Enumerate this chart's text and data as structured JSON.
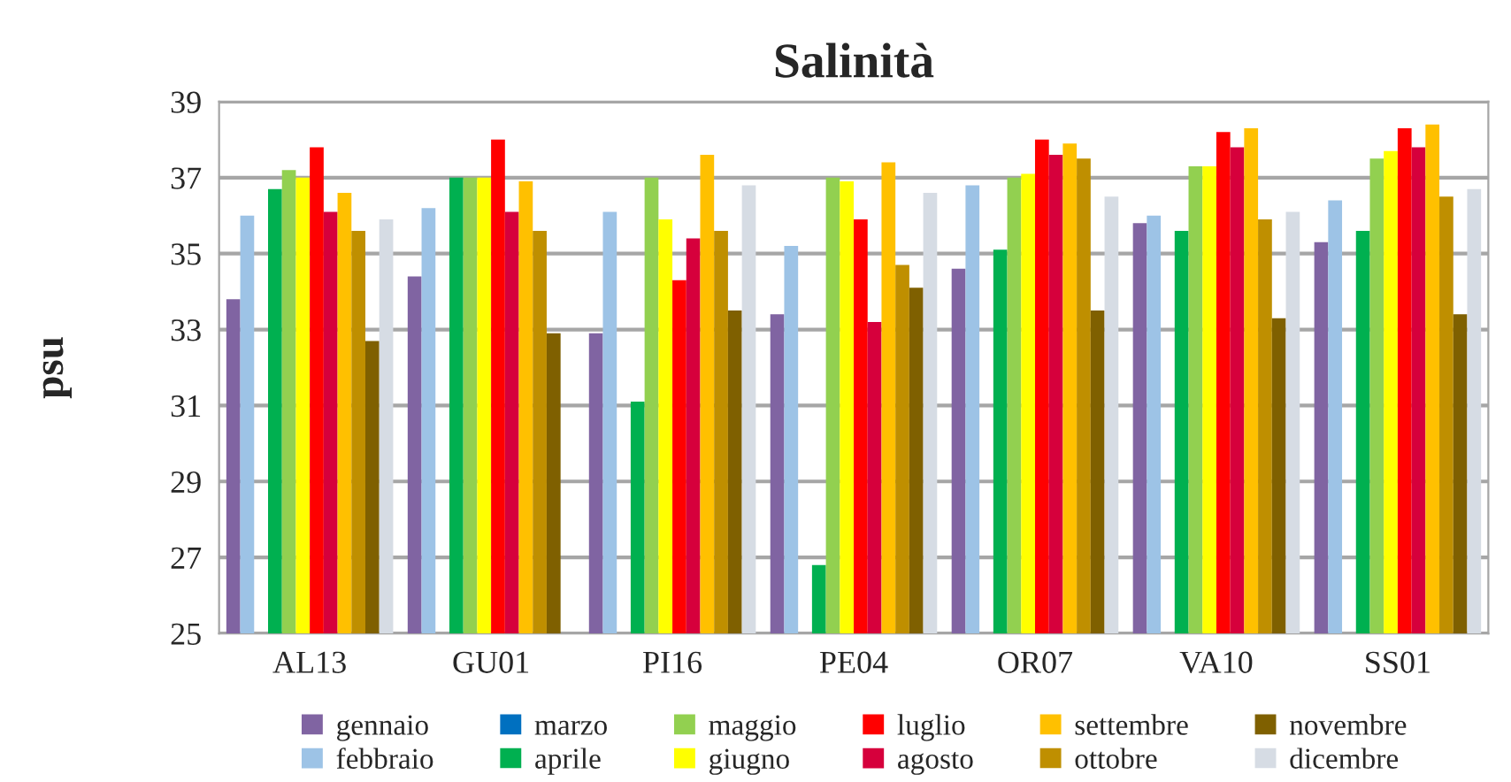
{
  "chart_data": {
    "type": "bar",
    "title": "Salinità",
    "ylabel": "psu",
    "categories": [
      "AL13",
      "GU01",
      "PI16",
      "PE04",
      "OR07",
      "VA10",
      "SS01"
    ],
    "ylim": [
      25,
      39
    ],
    "yticks": [
      25,
      27,
      29,
      31,
      33,
      35,
      37,
      39
    ],
    "grid": "y",
    "legend": "bottom",
    "series": [
      {
        "name": "gennaio",
        "color": "#8064a2",
        "values": [
          33.8,
          34.4,
          32.9,
          33.4,
          34.6,
          35.8,
          35.3
        ]
      },
      {
        "name": "febbraio",
        "color": "#9dc3e6",
        "values": [
          36.0,
          36.2,
          36.1,
          35.2,
          36.8,
          36.0,
          36.4
        ]
      },
      {
        "name": "marzo",
        "color": "#0070c0",
        "values": [
          null,
          null,
          null,
          null,
          null,
          null,
          null
        ]
      },
      {
        "name": "aprile",
        "color": "#00b050",
        "values": [
          36.7,
          37.0,
          31.1,
          26.8,
          35.1,
          35.6,
          35.6
        ]
      },
      {
        "name": "maggio",
        "color": "#92d050",
        "values": [
          37.2,
          37.0,
          37.0,
          37.0,
          37.0,
          37.3,
          37.5
        ]
      },
      {
        "name": "giugno",
        "color": "#ffff00",
        "values": [
          37.0,
          37.0,
          35.9,
          36.9,
          37.1,
          37.3,
          37.7
        ]
      },
      {
        "name": "luglio",
        "color": "#ff0000",
        "values": [
          37.8,
          38.0,
          34.3,
          35.9,
          38.0,
          38.2,
          38.3
        ]
      },
      {
        "name": "agosto",
        "color": "#d6003c",
        "values": [
          36.1,
          36.1,
          35.4,
          33.2,
          37.6,
          37.8,
          37.8
        ]
      },
      {
        "name": "settembre",
        "color": "#ffc000",
        "values": [
          36.6,
          36.9,
          37.6,
          37.4,
          37.9,
          38.3,
          38.4
        ]
      },
      {
        "name": "ottobre",
        "color": "#bf8f00",
        "values": [
          35.6,
          35.6,
          35.6,
          34.7,
          37.5,
          35.9,
          36.5
        ]
      },
      {
        "name": "novembre",
        "color": "#7f6000",
        "values": [
          32.7,
          32.9,
          33.5,
          34.1,
          33.5,
          33.3,
          33.4
        ]
      },
      {
        "name": "dicembre",
        "color": "#d6dce4",
        "values": [
          35.9,
          null,
          36.8,
          36.6,
          36.5,
          36.1,
          36.7
        ]
      }
    ]
  }
}
